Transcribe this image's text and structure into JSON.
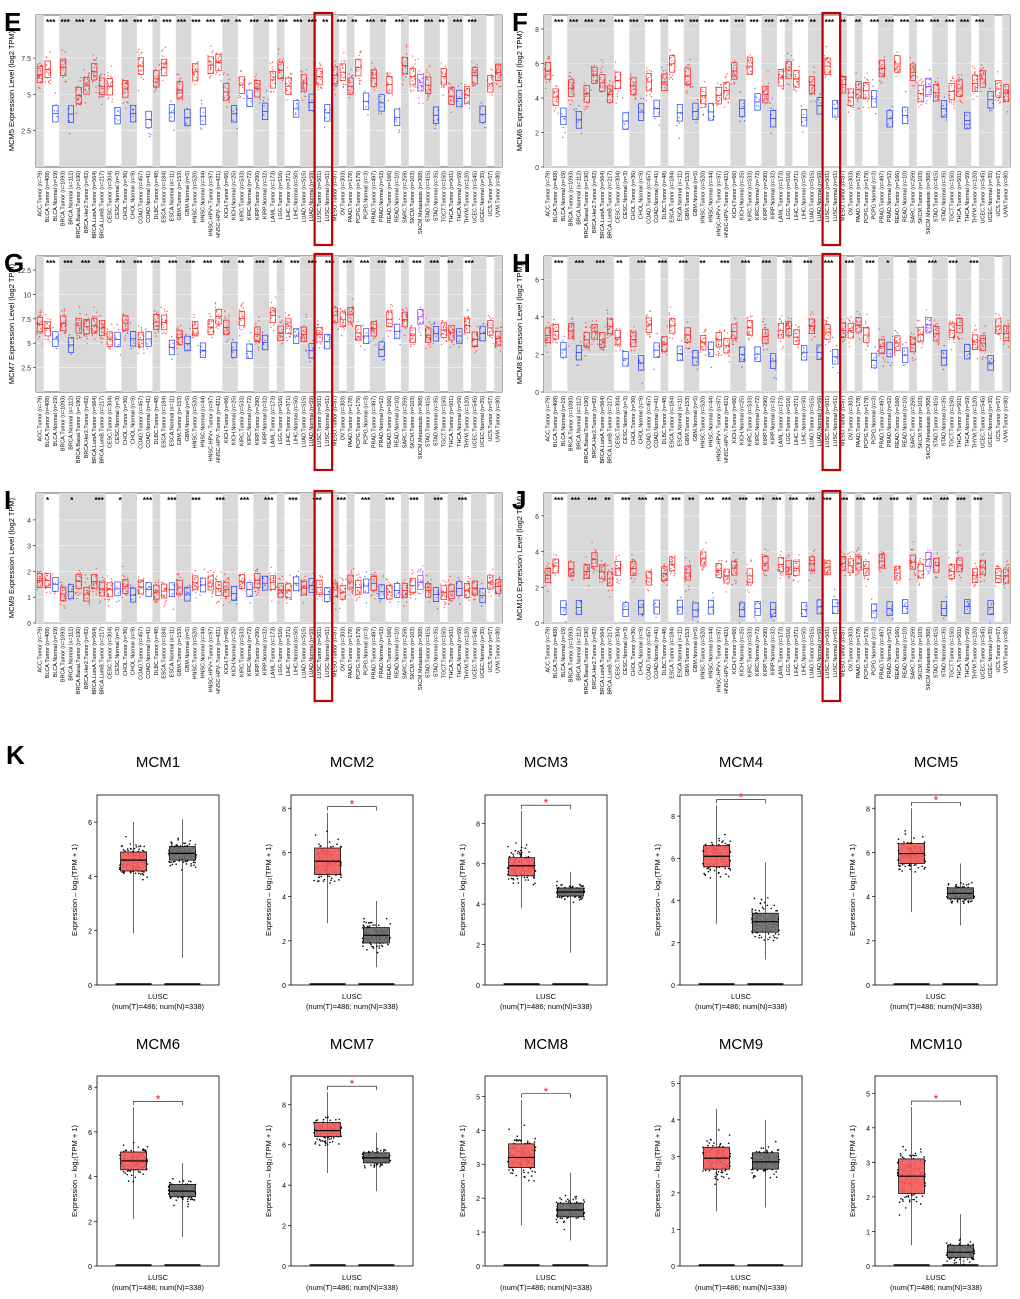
{
  "chart_data": {
    "type": "box",
    "panels": {
      "timer_categories": [
        "ACC.Tumor (n=79)",
        "BLCA.Tumor (n=408)",
        "BLCA.Normal (n=19)",
        "BRCA.Tumor (n=1093)",
        "BRCA.Normal (n=112)",
        "BRCA.Basal.Tumor (n=190)",
        "BRCA.Her2.Tumor (n=82)",
        "BRCA.LumA.Tumor (n=564)",
        "BRCA.LumB.Tumor (n=217)",
        "CESC.Tumor (n=304)",
        "CESC.Normal (n=3)",
        "CHOL.Tumor (n=36)",
        "CHOL.Normal (n=9)",
        "COAD.Tumor (n=457)",
        "COAD.Normal (n=41)",
        "DLBC.Tumor (n=48)",
        "ESCA.Tumor (n=184)",
        "ESCA.Normal (n=11)",
        "GBM.Tumor (n=153)",
        "GBM.Normal (n=5)",
        "HNSC.Tumor (n=520)",
        "HNSC.Normal (n=44)",
        "HNSC-HPV+.Tumor (n=97)",
        "HNSC-HPV-.Tumor (n=421)",
        "KICH.Tumor (n=66)",
        "KICH.Normal (n=25)",
        "KIRC.Tumor (n=533)",
        "KIRC.Normal (n=72)",
        "KIRP.Tumor (n=290)",
        "KIRP.Normal (n=32)",
        "LAML.Tumor (n=173)",
        "LGG.Tumor (n=516)",
        "LIHC.Tumor (n=371)",
        "LIHC.Normal (n=50)",
        "LUAD.Tumor (n=515)",
        "LUAD.Normal (n=59)",
        "LUSC.Tumor (n=501)",
        "LUSC.Normal (n=51)",
        "MESO.Tumor (n=87)",
        "OV.Tumor (n=303)",
        "PAAD.Tumor (n=178)",
        "PCPG.Tumor (n=179)",
        "PCPG.Normal (n=3)",
        "PRAD.Tumor (n=497)",
        "PRAD.Normal (n=52)",
        "READ.Tumor (n=166)",
        "READ.Normal (n=10)",
        "SARC.Tumor (n=259)",
        "SKCM.Tumor (n=103)",
        "SKCM.Metastasis (n=368)",
        "STAD.Tumor (n=415)",
        "STAD.Normal (n=35)",
        "TGCT.Tumor (n=150)",
        "THCA.Tumor (n=501)",
        "THCA.Normal (n=59)",
        "THYM.Tumor (n=120)",
        "UCEC.Tumor (n=545)",
        "UCEC.Normal (n=35)",
        "UCS.Tumor (n=57)",
        "UVM.Tumor (n=80)"
      ],
      "timer": [
        {
          "label": "E",
          "ylabel": "MCM5 Expression Level (log2 TPM)",
          "ticks": [
            2.5,
            5.0,
            7.5
          ],
          "ylim": [
            0,
            9.5
          ],
          "sig": [
            "***",
            "***",
            "***",
            "**",
            "***",
            "***",
            "***",
            "***",
            "***",
            "***",
            "***",
            "***",
            "***",
            "**",
            "***",
            "***",
            "***",
            "***",
            "***",
            "**",
            "***",
            "**",
            "***",
            "**",
            "***",
            "***",
            "***",
            "**",
            "***",
            "***"
          ]
        },
        {
          "label": "F",
          "ylabel": "MCM6 Expression Level (log2 TPM)",
          "ticks": [
            0,
            2,
            4,
            6,
            8
          ],
          "ylim": [
            0,
            8
          ],
          "sig": [
            "***",
            "***",
            "***",
            "**",
            "***",
            "***",
            "***",
            "***",
            "***",
            "***",
            "***",
            "***",
            "***",
            "***",
            "***",
            "***",
            "***",
            "**",
            "***",
            "**",
            "**",
            "***",
            "***",
            "***",
            "***",
            "***",
            "***",
            "***",
            "***"
          ]
        },
        {
          "label": "G",
          "ylabel": "MCM7 Expression Level (log2 TPM)",
          "ticks": [
            2.5,
            5.0,
            7.5,
            10.0,
            12.5
          ],
          "ylim": [
            0,
            12.5
          ],
          "sig": [
            "***",
            "***",
            "***",
            "**",
            "***",
            "***",
            "***",
            "***",
            "***",
            "***",
            "***",
            "**",
            "***",
            "***",
            "***",
            "***",
            "***",
            "***",
            "***",
            "***",
            "***",
            "***",
            "***",
            "**",
            "***"
          ]
        },
        {
          "label": "H",
          "ylabel": "MCM8 Expression Level (log2 TPM)",
          "ticks": [
            0,
            2,
            4,
            6
          ],
          "ylim": [
            0,
            6.5
          ],
          "sig": [
            "***",
            "***",
            "***",
            "**",
            "***",
            "***",
            "***",
            "**",
            "***",
            "***",
            "***",
            "***",
            "***",
            "***",
            "***",
            "***",
            "*",
            "***",
            "***",
            "***",
            "***"
          ]
        },
        {
          "label": "I",
          "ylabel": "MCM9 Expression Level (log2 TPM)",
          "ticks": [
            0,
            1,
            2,
            3,
            4
          ],
          "ylim": [
            0,
            4.5
          ],
          "sig": [
            "*",
            "*",
            "***",
            "*",
            "***",
            "***",
            "***",
            "***",
            "***",
            "***",
            "***",
            "***",
            "***",
            "***",
            "***",
            "***",
            "***",
            "***"
          ]
        },
        {
          "label": "J",
          "ylabel": "MCM10 Expression Level (log2 TPM)",
          "ticks": [
            0,
            2,
            4,
            6
          ],
          "ylim": [
            0,
            6.5
          ],
          "sig": [
            "***",
            "***",
            "***",
            "**",
            "***",
            "***",
            "***",
            "***",
            "**",
            "***",
            "***",
            "***",
            "***",
            "***",
            "***",
            "***",
            "***",
            "***",
            "***",
            "***",
            "***",
            "**",
            "***",
            "***",
            "***",
            "***"
          ]
        }
      ]
    },
    "gepia": {
      "label": "K",
      "ylabel": "Expression – log₂(TPM + 1)",
      "xlabel": "LUSC",
      "nlabel": "(num(T)=486; num(N)=338)",
      "star": "*",
      "plots": [
        {
          "gene": "MCM1",
          "ymax": 7,
          "ticks": [
            0,
            2,
            4,
            6
          ],
          "sig": false,
          "tumor": {
            "q1": 4.2,
            "median": 4.6,
            "q3": 4.9,
            "wlo": 1.9,
            "whi": 6.0
          },
          "normal": {
            "q1": 4.6,
            "median": 4.85,
            "q3": 5.1,
            "wlo": 1.0,
            "whi": 6.1
          }
        },
        {
          "gene": "MCM2",
          "ymax": 8.6,
          "ticks": [
            0,
            2,
            4,
            6,
            8
          ],
          "sig": true,
          "tumor": {
            "q1": 5.0,
            "median": 5.6,
            "q3": 6.2,
            "wlo": 2.8,
            "whi": 7.8
          },
          "normal": {
            "q1": 1.9,
            "median": 2.25,
            "q3": 2.6,
            "wlo": 0.8,
            "whi": 3.8
          }
        },
        {
          "gene": "MCM3",
          "ymax": 9.4,
          "ticks": [
            0,
            2,
            4,
            6,
            8
          ],
          "sig": true,
          "tumor": {
            "q1": 5.4,
            "median": 5.9,
            "q3": 6.3,
            "wlo": 3.8,
            "whi": 8.6
          },
          "normal": {
            "q1": 4.4,
            "median": 4.6,
            "q3": 4.8,
            "wlo": 1.6,
            "whi": 5.6
          }
        },
        {
          "gene": "MCM4",
          "ymax": 9.0,
          "ticks": [
            0,
            2,
            4,
            6,
            8
          ],
          "sig": true,
          "tumor": {
            "q1": 5.6,
            "median": 6.1,
            "q3": 6.6,
            "wlo": 2.9,
            "whi": 8.5
          },
          "normal": {
            "q1": 2.5,
            "median": 3.0,
            "q3": 3.4,
            "wlo": 1.2,
            "whi": 5.8
          }
        },
        {
          "gene": "MCM5",
          "ymax": 8.6,
          "ticks": [
            0,
            2,
            4,
            6,
            8
          ],
          "sig": true,
          "tumor": {
            "q1": 5.5,
            "median": 5.95,
            "q3": 6.4,
            "wlo": 3.3,
            "whi": 8.0
          },
          "normal": {
            "q1": 3.9,
            "median": 4.15,
            "q3": 4.4,
            "wlo": 2.7,
            "whi": 5.5
          }
        },
        {
          "gene": "MCM6",
          "ymax": 8.5,
          "ticks": [
            0,
            2,
            4,
            6,
            8
          ],
          "sig": true,
          "tumor": {
            "q1": 4.3,
            "median": 4.7,
            "q3": 5.1,
            "wlo": 2.1,
            "whi": 7.1
          },
          "normal": {
            "q1": 3.1,
            "median": 3.35,
            "q3": 3.65,
            "wlo": 1.3,
            "whi": 4.6
          }
        },
        {
          "gene": "MCM7",
          "ymax": 9.4,
          "ticks": [
            0,
            2,
            4,
            6,
            8
          ],
          "sig": true,
          "tumor": {
            "q1": 6.4,
            "median": 6.7,
            "q3": 7.1,
            "wlo": 4.6,
            "whi": 8.6
          },
          "normal": {
            "q1": 5.1,
            "median": 5.35,
            "q3": 5.6,
            "wlo": 3.7,
            "whi": 6.6
          }
        },
        {
          "gene": "MCM8",
          "ymax": 5.6,
          "ticks": [
            0,
            1,
            2,
            3,
            4,
            5
          ],
          "sig": true,
          "tumor": {
            "q1": 2.9,
            "median": 3.2,
            "q3": 3.6,
            "wlo": 1.2,
            "whi": 4.9
          },
          "normal": {
            "q1": 1.45,
            "median": 1.65,
            "q3": 1.85,
            "wlo": 0.75,
            "whi": 2.75
          }
        },
        {
          "gene": "MCM9",
          "ymax": 5.2,
          "ticks": [
            0,
            1,
            2,
            3,
            4,
            5
          ],
          "sig": false,
          "tumor": {
            "q1": 2.65,
            "median": 2.95,
            "q3": 3.25,
            "wlo": 1.5,
            "whi": 4.3
          },
          "normal": {
            "q1": 2.65,
            "median": 2.85,
            "q3": 3.1,
            "wlo": 1.6,
            "whi": 4.0
          }
        },
        {
          "gene": "MCM10",
          "ymax": 5.5,
          "ticks": [
            0,
            1,
            2,
            3,
            4,
            5
          ],
          "sig": true,
          "tumor": {
            "q1": 2.1,
            "median": 2.6,
            "q3": 3.1,
            "wlo": 0.6,
            "whi": 4.6
          },
          "normal": {
            "q1": 0.25,
            "median": 0.4,
            "q3": 0.6,
            "wlo": 0.05,
            "whi": 1.5
          }
        }
      ]
    }
  }
}
